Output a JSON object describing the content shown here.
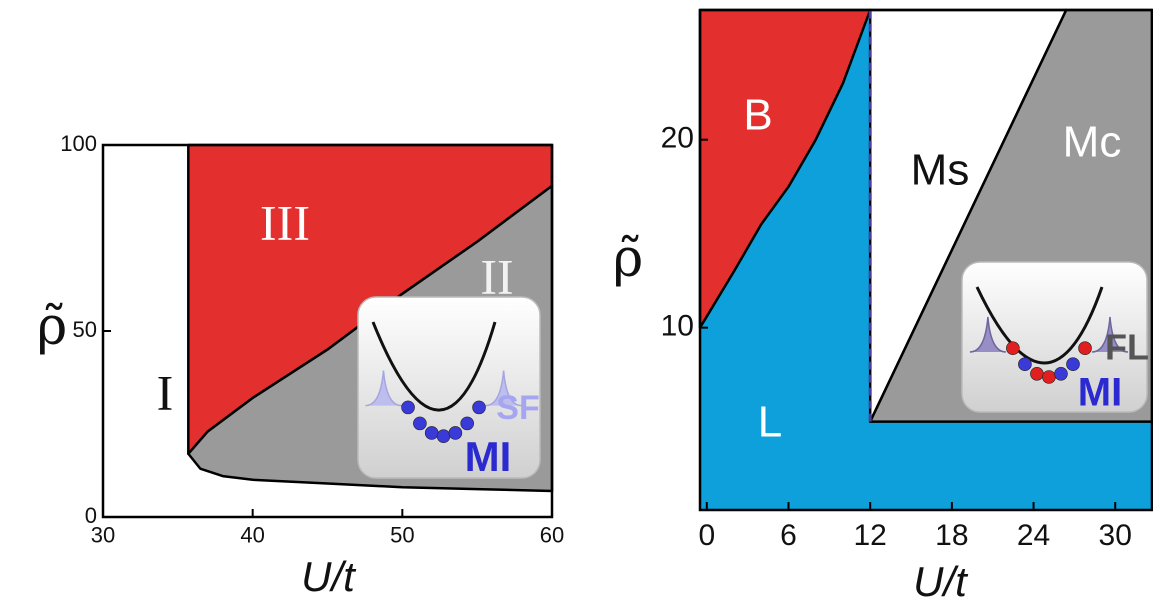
{
  "chart_data": [
    {
      "type": "area",
      "xlabel": "U/t",
      "ylabel": "ρ̃",
      "xlim": [
        30,
        60
      ],
      "ylim": [
        0,
        100
      ],
      "xticks": [
        30,
        40,
        50,
        60
      ],
      "yticks": [
        0,
        50,
        100
      ],
      "regions": [
        {
          "name": "I",
          "color": "#ffffff",
          "outlined": false,
          "x": [
            30,
            60,
            60,
            30
          ],
          "y": [
            0,
            0,
            100,
            100
          ]
        },
        {
          "name": "III",
          "color": "#e3302f",
          "outlined": true,
          "x": [
            35.7,
            35.7,
            60,
            60,
            55,
            50,
            45,
            40,
            37,
            35.7
          ],
          "y": [
            17,
            100,
            100,
            89,
            74,
            60,
            45,
            32,
            23,
            17
          ]
        },
        {
          "name": "II",
          "color": "#9a9a9a",
          "outlined": true,
          "x": [
            35.7,
            37,
            40,
            45,
            50,
            55,
            60,
            60,
            55,
            50,
            45,
            40,
            38,
            36.5,
            35.7
          ],
          "y": [
            17,
            23,
            32,
            45,
            60,
            74,
            89,
            7,
            7.5,
            8,
            9,
            10,
            11,
            13,
            17
          ]
        }
      ],
      "inset": {
        "labels": [
          "SF",
          "MI"
        ]
      }
    },
    {
      "type": "area",
      "xlabel": "U/t",
      "ylabel": "ρ̃",
      "xlim": [
        -0.5,
        32.7
      ],
      "ylim": [
        0.3,
        26.9
      ],
      "xticks": [
        0,
        6,
        12,
        18,
        24,
        30
      ],
      "yticks": [
        10,
        20
      ],
      "regions": [
        {
          "name": "L",
          "color": "#0ea0da",
          "outlined": false,
          "x": [
            -0.5,
            32.7,
            32.7,
            -0.5
          ],
          "y": [
            0.3,
            0.3,
            26.9,
            26.9
          ]
        },
        {
          "name": "B",
          "color": "#e3302f",
          "outlined": true,
          "x": [
            -0.5,
            12,
            10,
            8,
            6,
            4,
            2,
            -0.5
          ],
          "y": [
            26.9,
            26.9,
            23,
            20,
            17.5,
            15.5,
            13,
            10
          ]
        },
        {
          "name": "Ms",
          "color": "#ffffff",
          "outlined": true,
          "x": [
            12,
            12,
            26.4
          ],
          "y": [
            5,
            26.9,
            26.9
          ]
        },
        {
          "name": "Mc",
          "color": "#9a9a9a",
          "outlined": true,
          "x": [
            12,
            26.4,
            32.7,
            32.7
          ],
          "y": [
            5,
            26.9,
            26.9,
            5
          ]
        }
      ],
      "divider": {
        "x": [
          12,
          12
        ],
        "y": [
          5,
          26.9
        ],
        "color": "#4a3f9a"
      },
      "inset": {
        "labels": [
          "FL",
          "MI"
        ]
      }
    }
  ]
}
